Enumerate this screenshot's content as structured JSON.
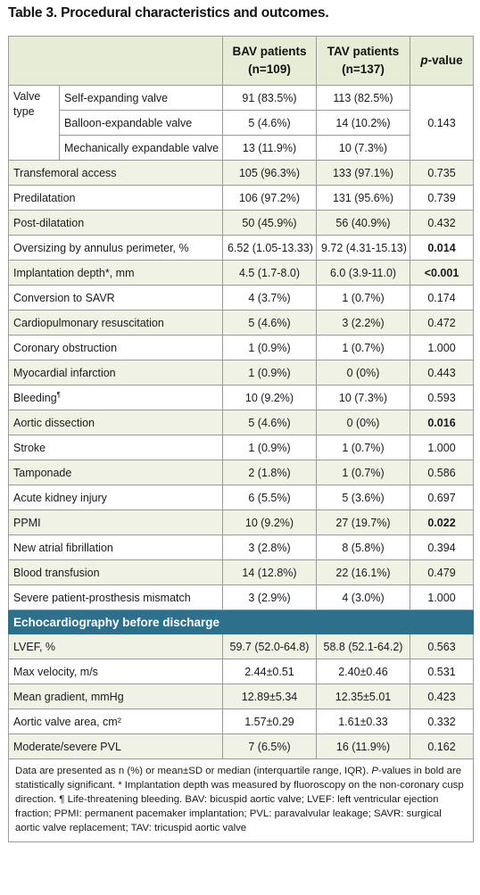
{
  "title": "Table 3. Procedural characteristics and outcomes.",
  "header": {
    "bav": "BAV patients (n=109)",
    "tav": "TAV patients (n=137)",
    "p_italic": "p",
    "p_rest": "-value"
  },
  "valve_type": {
    "label": "Valve type",
    "rows": [
      {
        "name": "Self-expanding valve",
        "bav": "91 (83.5%)",
        "tav": "113 (82.5%)"
      },
      {
        "name": "Balloon-expandable valve",
        "bav": "5 (4.6%)",
        "tav": "14 (10.2%)"
      },
      {
        "name": "Mechanically expandable valve",
        "bav": "13 (11.9%)",
        "tav": "10 (7.3%)"
      }
    ],
    "p": "0.143"
  },
  "rows": [
    {
      "name": "Transfemoral access",
      "bav": "105 (96.3%)",
      "tav": "133 (97.1%)",
      "p": "0.735"
    },
    {
      "name": "Predilatation",
      "bav": "106 (97.2%)",
      "tav": "131 (95.6%)",
      "p": "0.739"
    },
    {
      "name": "Post-dilatation",
      "bav": "50 (45.9%)",
      "tav": "56 (40.9%)",
      "p": "0.432"
    },
    {
      "name": "Oversizing by annulus perimeter, %",
      "bav": "6.52 (1.05-13.33)",
      "tav": "9.72 (4.31-15.13)",
      "p": "0.014"
    },
    {
      "name": "Implantation depth*, mm",
      "bav": "4.5 (1.7-8.0)",
      "tav": "6.0 (3.9-11.0)",
      "p": "<0.001"
    },
    {
      "name": "Conversion to SAVR",
      "bav": "4 (3.7%)",
      "tav": "1 (0.7%)",
      "p": "0.174"
    },
    {
      "name": "Cardiopulmonary resuscitation",
      "bav": "5 (4.6%)",
      "tav": "3 (2.2%)",
      "p": "0.472"
    },
    {
      "name": "Coronary obstruction",
      "bav": "1 (0.9%)",
      "tav": "1 (0.7%)",
      "p": "1.000"
    },
    {
      "name": "Myocardial infarction",
      "bav": "1 (0.9%)",
      "tav": "0 (0%)",
      "p": "0.443"
    },
    {
      "name": "Bleeding",
      "sup": "¶",
      "bav": "10 (9.2%)",
      "tav": "10 (7.3%)",
      "p": "0.593"
    },
    {
      "name": "Aortic dissection",
      "bav": "5 (4.6%)",
      "tav": "0 (0%)",
      "p": "0.016"
    },
    {
      "name": "Stroke",
      "bav": "1 (0.9%)",
      "tav": "1 (0.7%)",
      "p": "1.000"
    },
    {
      "name": "Tamponade",
      "bav": "2 (1.8%)",
      "tav": "1 (0.7%)",
      "p": "0.586"
    },
    {
      "name": "Acute kidney injury",
      "bav": "6 (5.5%)",
      "tav": "5 (3.6%)",
      "p": "0.697"
    },
    {
      "name": "PPMI",
      "bav": "10 (9.2%)",
      "tav": "27 (19.7%)",
      "p": "0.022"
    },
    {
      "name": "New atrial fibrillation",
      "bav": "3 (2.8%)",
      "tav": "8 (5.8%)",
      "p": "0.394"
    },
    {
      "name": "Blood transfusion",
      "bav": "14 (12.8%)",
      "tav": "22 (16.1%)",
      "p": "0.479"
    },
    {
      "name": "Severe patient-prosthesis mismatch",
      "bav": "3 (2.9%)",
      "tav": "4 (3.0%)",
      "p": "1.000"
    }
  ],
  "echo_section": "Echocardiography before discharge",
  "echo_rows": [
    {
      "name": "LVEF, %",
      "bav": "59.7 (52.0-64.8)",
      "tav": "58.8 (52.1-64.2)",
      "p": "0.563"
    },
    {
      "name": "Max velocity, m/s",
      "bav": "2.44±0.51",
      "tav": "2.40±0.46",
      "p": "0.531"
    },
    {
      "name": "Mean gradient, mmHg",
      "bav": "12.89±5.34",
      "tav": "12.35±5.01",
      "p": "0.423"
    },
    {
      "name": "Aortic valve area, cm²",
      "bav": "1.57±0.29",
      "tav": "1.61±0.33",
      "p": "0.332"
    },
    {
      "name": "Moderate/severe PVL",
      "bav": "7 (6.5%)",
      "tav": "16 (11.9%)",
      "p": "0.162"
    }
  ],
  "footnote": {
    "part1": "Data are presented as n (%) or mean±SD or median (interquartile range, IQR). ",
    "p_italic": "P",
    "part2": "-values in bold are statistically significant. * Implantation depth was measured by fluoroscopy on the non-coronary cusp direction. ¶ Life-threatening bleeding. BAV: bicuspid aortic valve; LVEF: left ventricular ejection fraction; PPMI: permanent pacemaker implantation; PVL: paravalvular leakage; SAVR: surgical aortic valve replacement; TAV: tricuspid aortic valve"
  },
  "colors": {
    "header_bg": "#e7ecd6",
    "shade_bg": "#f1f2e6",
    "section_bg": "#2e6f8c"
  }
}
